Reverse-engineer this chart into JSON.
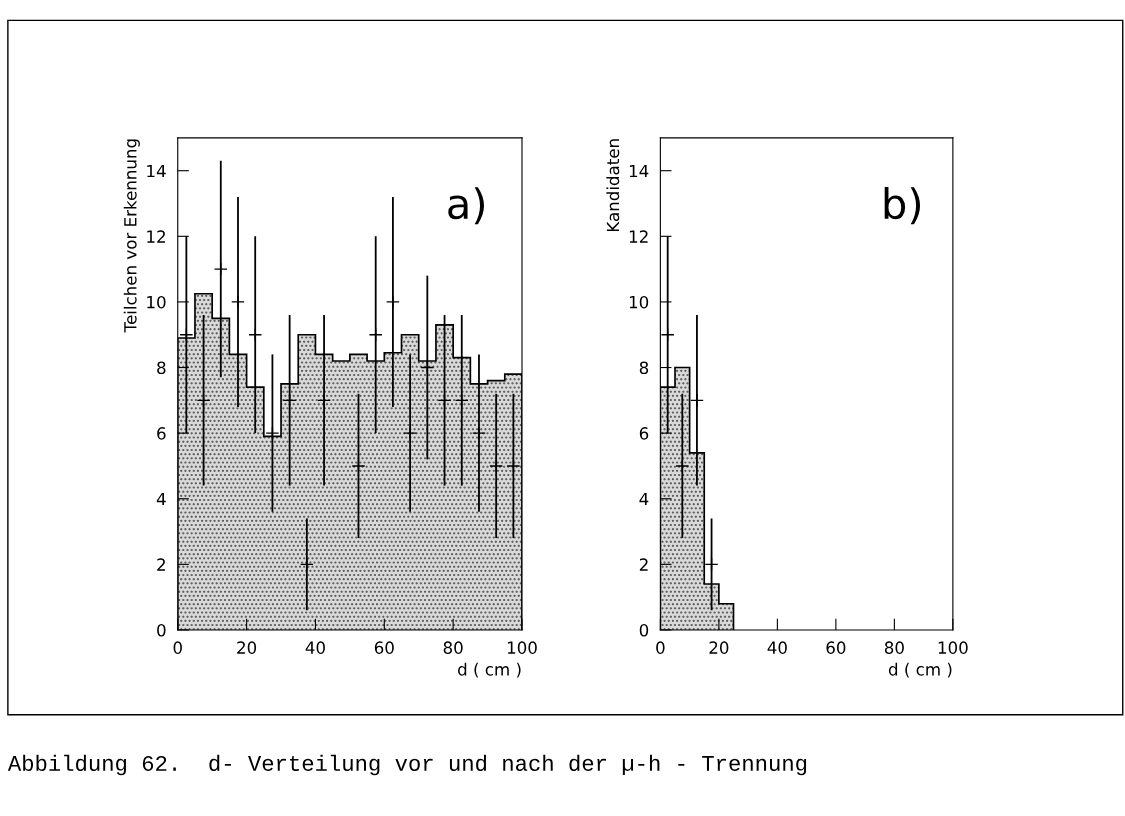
{
  "chart_data": [
    {
      "type": "histogram",
      "xlabel": "d ( cm )",
      "ylabel": "Teilchen vor Erkennung",
      "xlim": [
        0,
        100
      ],
      "ylim": [
        0,
        15
      ],
      "xticks": [
        0,
        20,
        40,
        60,
        80,
        100
      ],
      "yticks": [
        0,
        2,
        4,
        6,
        8,
        10,
        12,
        14
      ],
      "grid": false,
      "legend": false,
      "annotations": [
        "a)",
        "Abbildung 62.  d- Verteilung vor und nach der µ-h - Trennung"
      ],
      "series": [
        {
          "color": "#d9d9d9",
          "bins": [
            0,
            5,
            10,
            15,
            20,
            25,
            30,
            35,
            40,
            45,
            50,
            55,
            60,
            65,
            70,
            75,
            80,
            85,
            90,
            95,
            100
          ],
          "values": [
            8.9,
            10.25,
            9.5,
            8.4,
            7.4,
            5.9,
            7.5,
            9.0,
            8.4,
            8.2,
            8.4,
            8.2,
            8.45,
            9.0,
            8.2,
            9.3,
            8.3,
            7.5,
            7.6,
            7.8
          ]
        },
        {
          "type": "scatter",
          "color": "#000000",
          "marker": "cross",
          "x": [
            2.5,
            7.5,
            12.5,
            17.5,
            22.5,
            27.5,
            32.5,
            37.5,
            42.5,
            47.5,
            52.5,
            57.5,
            62.5,
            67.5,
            72.5,
            77.5,
            82.5,
            87.5,
            92.5,
            97.5
          ],
          "values": [
            9,
            7,
            11,
            10,
            9,
            6,
            7,
            2,
            7,
            null,
            5,
            9,
            10,
            6,
            8,
            7,
            7,
            6,
            5,
            5
          ],
          "errors": [
            3,
            2.6,
            3.3,
            3.2,
            3,
            2.4,
            2.6,
            1.4,
            2.6,
            null,
            2.2,
            3,
            3.2,
            2.4,
            2.8,
            2.6,
            2.6,
            2.4,
            2.2,
            2.2
          ]
        }
      ]
    },
    {
      "type": "histogram",
      "xlabel": "d ( cm )",
      "ylabel": "Kandidaten",
      "xlim": [
        0,
        100
      ],
      "ylim": [
        0,
        15
      ],
      "xticks": [
        0,
        20,
        40,
        60,
        80,
        100
      ],
      "yticks": [
        0,
        2,
        4,
        6,
        8,
        10,
        12,
        14
      ],
      "grid": false,
      "legend": false,
      "annotations": [
        "b)"
      ],
      "series": [
        {
          "color": "#d9d9d9",
          "bins": [
            0,
            5,
            10,
            15,
            20,
            25
          ],
          "values": [
            7.4,
            8.0,
            5.4,
            1.4,
            0.8
          ]
        },
        {
          "type": "scatter",
          "color": "#000000",
          "marker": "cross",
          "x": [
            2.5,
            7.5,
            12.5,
            17.5
          ],
          "values": [
            9,
            5,
            7,
            2
          ],
          "errors": [
            3,
            2.2,
            2.6,
            1.4
          ]
        }
      ]
    }
  ]
}
